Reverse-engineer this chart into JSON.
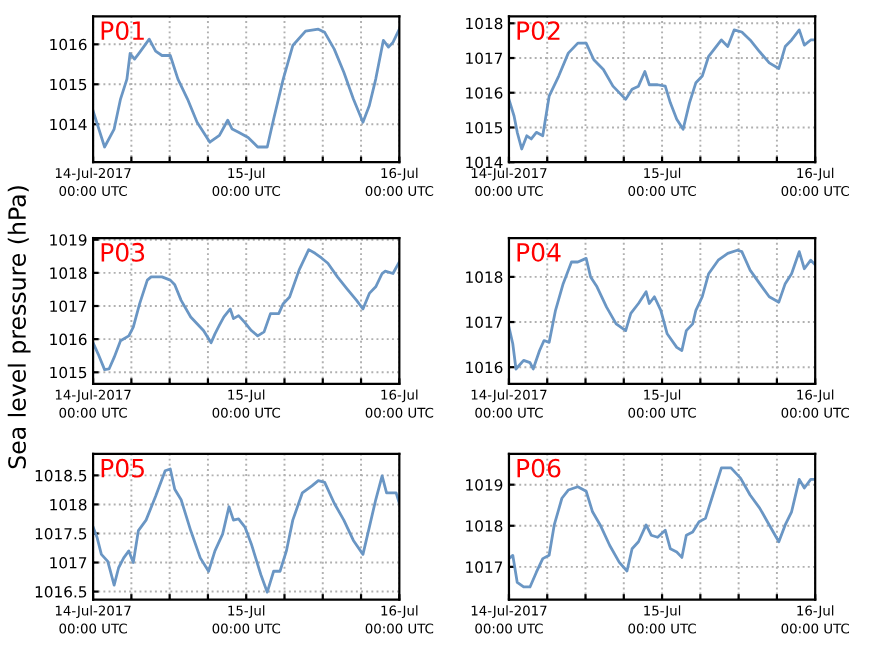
{
  "chart_data": [
    {
      "type": "line",
      "title": "P01",
      "xlim": [
        "2017-07-14T00:00",
        "2017-07-16T00:00"
      ],
      "ylim": [
        1013.05,
        1016.7
      ],
      "yticks": [
        1014,
        1015,
        1016
      ],
      "grid": true,
      "xticks": [
        {
          "value": "2017-07-14T00:00",
          "label": "14-Jul-2017\n00:00 UTC"
        },
        {
          "value": "2017-07-14T06:00",
          "label": null
        },
        {
          "value": "2017-07-14T12:00",
          "label": null
        },
        {
          "value": "2017-07-14T18:00",
          "label": null
        },
        {
          "value": "2017-07-15T00:00",
          "label": "15-Jul\n00:00 UTC"
        },
        {
          "value": "2017-07-15T06:00",
          "label": null
        },
        {
          "value": "2017-07-15T12:00",
          "label": null
        },
        {
          "value": "2017-07-15T18:00",
          "label": null
        },
        {
          "value": "2017-07-16T00:00",
          "label": "16-Jul\n00:00 UTC"
        }
      ],
      "series": [
        {
          "color": "#6a96c4",
          "x": [
            "2017-07-14T00:00",
            "2017-07-14T01:48",
            "2017-07-14T03:18",
            "2017-07-14T04:18",
            "2017-07-14T05:18",
            "2017-07-14T05:48",
            "2017-07-14T06:30",
            "2017-07-14T07:18",
            "2017-07-14T08:48",
            "2017-07-14T09:48",
            "2017-07-14T10:48",
            "2017-07-14T12:06",
            "2017-07-14T13:18",
            "2017-07-14T14:48",
            "2017-07-14T16:18",
            "2017-07-14T18:18",
            "2017-07-14T19:48",
            "2017-07-14T21:06",
            "2017-07-14T21:48",
            "2017-07-14T22:48",
            "2017-07-15T00:18",
            "2017-07-15T01:48",
            "2017-07-15T03:18",
            "2017-07-15T04:18",
            "2017-07-15T05:48",
            "2017-07-15T07:18",
            "2017-07-15T09:18",
            "2017-07-15T11:18",
            "2017-07-15T12:18",
            "2017-07-15T13:48",
            "2017-07-15T15:18",
            "2017-07-15T16:48",
            "2017-07-15T18:18",
            "2017-07-15T19:18",
            "2017-07-15T20:18",
            "2017-07-15T21:30",
            "2017-07-15T22:18",
            "2017-07-15T23:00",
            "2017-07-16T00:00"
          ],
          "values": [
            1014.33,
            1013.43,
            1013.88,
            1014.63,
            1015.13,
            1015.77,
            1015.63,
            1015.8,
            1016.13,
            1015.83,
            1015.72,
            1015.72,
            1015.13,
            1014.63,
            1014.05,
            1013.55,
            1013.72,
            1014.1,
            1013.88,
            1013.8,
            1013.67,
            1013.43,
            1013.43,
            1014.13,
            1015.13,
            1015.97,
            1016.33,
            1016.38,
            1016.3,
            1015.88,
            1015.3,
            1014.63,
            1014.05,
            1014.47,
            1015.13,
            1016.1,
            1015.93,
            1016.05,
            1016.38
          ]
        }
      ]
    },
    {
      "type": "line",
      "title": "P02",
      "xlim": [
        "2017-07-14T00:00",
        "2017-07-16T00:00"
      ],
      "ylim": [
        1014,
        1018.2
      ],
      "yticks": [
        1014,
        1015,
        1016,
        1017,
        1018
      ],
      "grid": true,
      "xticks": [
        {
          "value": "2017-07-14T00:00",
          "label": "14-Jul-2017\n00:00 UTC"
        },
        {
          "value": "2017-07-14T06:00",
          "label": null
        },
        {
          "value": "2017-07-14T12:00",
          "label": null
        },
        {
          "value": "2017-07-14T18:00",
          "label": null
        },
        {
          "value": "2017-07-15T00:00",
          "label": "15-Jul\n00:00 UTC"
        },
        {
          "value": "2017-07-15T06:00",
          "label": null
        },
        {
          "value": "2017-07-15T12:00",
          "label": null
        },
        {
          "value": "2017-07-15T18:00",
          "label": null
        },
        {
          "value": "2017-07-16T00:00",
          "label": "16-Jul\n00:00 UTC"
        }
      ],
      "series": [
        {
          "color": "#6a96c4",
          "x": [
            "2017-07-14T00:00",
            "2017-07-14T00:48",
            "2017-07-14T01:18",
            "2017-07-14T02:00",
            "2017-07-14T02:48",
            "2017-07-14T03:30",
            "2017-07-14T04:18",
            "2017-07-14T05:18",
            "2017-07-14T06:18",
            "2017-07-14T07:48",
            "2017-07-14T09:18",
            "2017-07-14T10:48",
            "2017-07-14T12:06",
            "2017-07-14T13:18",
            "2017-07-14T14:48",
            "2017-07-14T16:18",
            "2017-07-14T18:18",
            "2017-07-14T19:18",
            "2017-07-14T20:18",
            "2017-07-14T21:18",
            "2017-07-14T22:00",
            "2017-07-14T23:18",
            "2017-07-15T00:30",
            "2017-07-15T01:18",
            "2017-07-15T02:18",
            "2017-07-15T03:18",
            "2017-07-15T04:18",
            "2017-07-15T05:18",
            "2017-07-15T06:18",
            "2017-07-15T07:18",
            "2017-07-15T09:18",
            "2017-07-15T10:18",
            "2017-07-15T11:18",
            "2017-07-15T12:30",
            "2017-07-15T13:48",
            "2017-07-15T15:18",
            "2017-07-15T16:48",
            "2017-07-15T18:18",
            "2017-07-15T19:18",
            "2017-07-15T20:18",
            "2017-07-15T21:30",
            "2017-07-15T22:18",
            "2017-07-15T23:18",
            "2017-07-16T00:00"
          ],
          "values": [
            1015.81,
            1015.33,
            1014.86,
            1014.38,
            1014.76,
            1014.67,
            1014.86,
            1014.76,
            1015.9,
            1016.48,
            1017.14,
            1017.43,
            1017.43,
            1016.95,
            1016.67,
            1016.19,
            1015.81,
            1016.1,
            1016.19,
            1016.61,
            1016.23,
            1016.23,
            1016.19,
            1015.71,
            1015.24,
            1014.95,
            1015.71,
            1016.29,
            1016.48,
            1017.05,
            1017.52,
            1017.33,
            1017.81,
            1017.75,
            1017.52,
            1017.18,
            1016.86,
            1016.7,
            1017.33,
            1017.52,
            1017.81,
            1017.37,
            1017.52,
            1017.52
          ]
        }
      ]
    },
    {
      "type": "line",
      "title": "P03",
      "ylabel": "Sea level pressure (hPa)",
      "xlim": [
        "2017-07-14T00:00",
        "2017-07-16T00:00"
      ],
      "ylim": [
        1014.65,
        1019.05
      ],
      "yticks": [
        1015,
        1016,
        1017,
        1018,
        1019
      ],
      "grid": true,
      "xticks": [
        {
          "value": "2017-07-14T00:00",
          "label": "14-Jul-2017\n00:00 UTC"
        },
        {
          "value": "2017-07-14T06:00",
          "label": null
        },
        {
          "value": "2017-07-14T12:00",
          "label": null
        },
        {
          "value": "2017-07-14T18:00",
          "label": null
        },
        {
          "value": "2017-07-15T00:00",
          "label": "15-Jul\n00:00 UTC"
        },
        {
          "value": "2017-07-15T06:00",
          "label": null
        },
        {
          "value": "2017-07-15T12:00",
          "label": null
        },
        {
          "value": "2017-07-15T18:00",
          "label": null
        },
        {
          "value": "2017-07-16T00:00",
          "label": "16-Jul\n00:00 UTC"
        }
      ],
      "series": [
        {
          "color": "#6a96c4",
          "x": [
            "2017-07-14T00:00",
            "2017-07-14T00:48",
            "2017-07-14T01:48",
            "2017-07-14T02:30",
            "2017-07-14T03:18",
            "2017-07-14T04:18",
            "2017-07-14T05:36",
            "2017-07-14T06:18",
            "2017-07-14T07:18",
            "2017-07-14T08:30",
            "2017-07-14T09:06",
            "2017-07-14T10:48",
            "2017-07-14T12:06",
            "2017-07-14T12:48",
            "2017-07-14T13:48",
            "2017-07-14T15:18",
            "2017-07-14T17:18",
            "2017-07-14T18:30",
            "2017-07-14T19:06",
            "2017-07-14T19:48",
            "2017-07-14T20:30",
            "2017-07-14T21:30",
            "2017-07-14T22:00",
            "2017-07-14T22:48",
            "2017-07-14T23:48",
            "2017-07-15T00:48",
            "2017-07-15T01:48",
            "2017-07-15T02:48",
            "2017-07-15T03:48",
            "2017-07-15T05:06",
            "2017-07-15T05:48",
            "2017-07-15T06:48",
            "2017-07-15T08:18",
            "2017-07-15T09:48",
            "2017-07-15T10:48",
            "2017-07-15T11:48",
            "2017-07-15T12:48",
            "2017-07-15T14:18",
            "2017-07-15T15:48",
            "2017-07-15T17:18",
            "2017-07-15T18:18",
            "2017-07-15T19:18",
            "2017-07-15T20:18",
            "2017-07-15T21:18",
            "2017-07-15T21:48",
            "2017-07-15T23:00",
            "2017-07-16T00:00"
          ],
          "values": [
            1015.89,
            1015.55,
            1015.08,
            1015.1,
            1015.45,
            1015.95,
            1016.1,
            1016.36,
            1017.07,
            1017.78,
            1017.88,
            1017.88,
            1017.78,
            1017.64,
            1017.17,
            1016.67,
            1016.26,
            1015.89,
            1016.16,
            1016.42,
            1016.67,
            1016.91,
            1016.62,
            1016.71,
            1016.5,
            1016.26,
            1016.1,
            1016.22,
            1016.77,
            1016.77,
            1017.07,
            1017.27,
            1018.09,
            1018.7,
            1018.59,
            1018.45,
            1018.29,
            1017.88,
            1017.52,
            1017.17,
            1016.91,
            1017.38,
            1017.58,
            1017.98,
            1018.05,
            1017.98,
            1018.33
          ]
        }
      ]
    },
    {
      "type": "line",
      "title": "P04",
      "xlim": [
        "2017-07-14T00:00",
        "2017-07-16T00:00"
      ],
      "ylim": [
        1015.63,
        1018.86
      ],
      "yticks": [
        1016,
        1017,
        1018
      ],
      "grid": true,
      "xticks": [
        {
          "value": "2017-07-14T00:00",
          "label": "14-Jul-2017\n00:00 UTC"
        },
        {
          "value": "2017-07-14T06:00",
          "label": null
        },
        {
          "value": "2017-07-14T12:00",
          "label": null
        },
        {
          "value": "2017-07-14T18:00",
          "label": null
        },
        {
          "value": "2017-07-15T00:00",
          "label": "15-Jul\n00:00 UTC"
        },
        {
          "value": "2017-07-15T06:00",
          "label": null
        },
        {
          "value": "2017-07-15T12:00",
          "label": null
        },
        {
          "value": "2017-07-15T18:00",
          "label": null
        },
        {
          "value": "2017-07-16T00:00",
          "label": "16-Jul\n00:00 UTC"
        }
      ],
      "series": [
        {
          "color": "#6a96c4",
          "x": [
            "2017-07-14T00:00",
            "2017-07-14T00:36",
            "2017-07-14T01:06",
            "2017-07-14T01:48",
            "2017-07-14T02:18",
            "2017-07-14T03:18",
            "2017-07-14T03:48",
            "2017-07-14T04:48",
            "2017-07-14T05:30",
            "2017-07-14T06:18",
            "2017-07-14T07:18",
            "2017-07-14T08:30",
            "2017-07-14T09:48",
            "2017-07-14T10:48",
            "2017-07-14T12:06",
            "2017-07-14T12:48",
            "2017-07-14T13:48",
            "2017-07-14T15:18",
            "2017-07-14T16:48",
            "2017-07-14T18:18",
            "2017-07-14T19:06",
            "2017-07-14T20:18",
            "2017-07-14T21:30",
            "2017-07-14T22:00",
            "2017-07-14T22:48",
            "2017-07-14T23:48",
            "2017-07-15T00:48",
            "2017-07-15T02:18",
            "2017-07-15T03:06",
            "2017-07-15T03:48",
            "2017-07-15T04:48",
            "2017-07-15T05:18",
            "2017-07-15T06:18",
            "2017-07-15T07:18",
            "2017-07-15T08:48",
            "2017-07-15T10:18",
            "2017-07-15T11:48",
            "2017-07-15T12:30",
            "2017-07-15T13:48",
            "2017-07-15T15:18",
            "2017-07-15T16:48",
            "2017-07-15T18:18",
            "2017-07-15T19:18",
            "2017-07-15T20:18",
            "2017-07-15T21:30",
            "2017-07-15T22:18",
            "2017-07-15T23:18",
            "2017-07-16T00:00"
          ],
          "values": [
            1016.89,
            1016.52,
            1015.96,
            1016.07,
            1016.15,
            1016.1,
            1015.96,
            1016.37,
            1016.59,
            1016.55,
            1017.26,
            1017.85,
            1018.33,
            1018.33,
            1018.41,
            1018.0,
            1017.78,
            1017.33,
            1016.96,
            1016.81,
            1017.19,
            1017.41,
            1017.67,
            1017.41,
            1017.56,
            1017.26,
            1016.74,
            1016.44,
            1016.37,
            1016.81,
            1016.96,
            1017.26,
            1017.56,
            1018.07,
            1018.37,
            1018.52,
            1018.59,
            1018.56,
            1018.15,
            1017.85,
            1017.56,
            1017.44,
            1017.85,
            1018.07,
            1018.56,
            1018.18,
            1018.37,
            1018.27
          ]
        }
      ]
    },
    {
      "type": "line",
      "title": "P05",
      "xlim": [
        "2017-07-14T00:00",
        "2017-07-16T00:00"
      ],
      "ylim": [
        1016.36,
        1018.87
      ],
      "yticks": [
        1016.5,
        1017,
        1017.5,
        1018,
        1018.5
      ],
      "grid": true,
      "xticks": [
        {
          "value": "2017-07-14T00:00",
          "label": "14-Jul-2017\n00:00 UTC"
        },
        {
          "value": "2017-07-14T06:00",
          "label": null
        },
        {
          "value": "2017-07-14T12:00",
          "label": null
        },
        {
          "value": "2017-07-14T18:00",
          "label": null
        },
        {
          "value": "2017-07-15T00:00",
          "label": "15-Jul\n00:00 UTC"
        },
        {
          "value": "2017-07-15T06:00",
          "label": null
        },
        {
          "value": "2017-07-15T12:00",
          "label": null
        },
        {
          "value": "2017-07-15T18:00",
          "label": null
        },
        {
          "value": "2017-07-16T00:00",
          "label": "16-Jul\n00:00 UTC"
        }
      ],
      "series": [
        {
          "color": "#6a96c4",
          "x": [
            "2017-07-14T00:00",
            "2017-07-14T00:36",
            "2017-07-14T01:18",
            "2017-07-14T02:18",
            "2017-07-14T03:18",
            "2017-07-14T04:00",
            "2017-07-14T04:48",
            "2017-07-14T05:36",
            "2017-07-14T06:18",
            "2017-07-14T07:06",
            "2017-07-14T08:18",
            "2017-07-14T09:48",
            "2017-07-14T11:18",
            "2017-07-14T12:06",
            "2017-07-14T12:48",
            "2017-07-14T13:48",
            "2017-07-14T15:18",
            "2017-07-14T16:48",
            "2017-07-14T18:06",
            "2017-07-14T19:06",
            "2017-07-14T20:18",
            "2017-07-14T21:18",
            "2017-07-14T22:00",
            "2017-07-14T22:48",
            "2017-07-14T23:48",
            "2017-07-15T00:48",
            "2017-07-15T02:18",
            "2017-07-15T03:18",
            "2017-07-15T04:18",
            "2017-07-15T05:18",
            "2017-07-15T06:18",
            "2017-07-15T07:18",
            "2017-07-15T08:48",
            "2017-07-15T10:18",
            "2017-07-15T11:18",
            "2017-07-15T12:18",
            "2017-07-15T13:48",
            "2017-07-15T15:18",
            "2017-07-15T16:48",
            "2017-07-15T18:18",
            "2017-07-15T19:18",
            "2017-07-15T20:18",
            "2017-07-15T21:18",
            "2017-07-15T22:00",
            "2017-07-15T22:48",
            "2017-07-15T23:30",
            "2017-07-16T00:00"
          ],
          "values": [
            1017.61,
            1017.44,
            1017.14,
            1017.02,
            1016.61,
            1016.91,
            1017.08,
            1017.2,
            1017.0,
            1017.55,
            1017.73,
            1018.14,
            1018.58,
            1018.61,
            1018.26,
            1018.08,
            1017.55,
            1017.08,
            1016.85,
            1017.2,
            1017.49,
            1017.96,
            1017.73,
            1017.75,
            1017.61,
            1017.32,
            1016.79,
            1016.49,
            1016.85,
            1016.85,
            1017.2,
            1017.73,
            1018.2,
            1018.32,
            1018.41,
            1018.38,
            1018.02,
            1017.73,
            1017.38,
            1017.14,
            1017.61,
            1018.08,
            1018.49,
            1018.2,
            1018.2,
            1018.2,
            1018.02
          ]
        }
      ]
    },
    {
      "type": "line",
      "title": "P06",
      "xlim": [
        "2017-07-14T00:00",
        "2017-07-16T00:00"
      ],
      "ylim": [
        1016.2,
        1019.75
      ],
      "yticks": [
        1017,
        1018,
        1019
      ],
      "grid": true,
      "xticks": [
        {
          "value": "2017-07-14T00:00",
          "label": "14-Jul-2017\n00:00 UTC"
        },
        {
          "value": "2017-07-14T06:00",
          "label": null
        },
        {
          "value": "2017-07-14T12:00",
          "label": null
        },
        {
          "value": "2017-07-14T18:00",
          "label": null
        },
        {
          "value": "2017-07-15T00:00",
          "label": "15-Jul\n00:00 UTC"
        },
        {
          "value": "2017-07-15T06:00",
          "label": null
        },
        {
          "value": "2017-07-15T12:00",
          "label": null
        },
        {
          "value": "2017-07-15T18:00",
          "label": null
        },
        {
          "value": "2017-07-16T00:00",
          "label": "16-Jul\n00:00 UTC"
        }
      ],
      "series": [
        {
          "color": "#6a96c4",
          "x": [
            "2017-07-14T00:00",
            "2017-07-14T00:36",
            "2017-07-14T01:18",
            "2017-07-14T02:18",
            "2017-07-14T03:18",
            "2017-07-14T04:18",
            "2017-07-14T05:18",
            "2017-07-14T06:18",
            "2017-07-14T07:06",
            "2017-07-14T08:18",
            "2017-07-14T09:18",
            "2017-07-14T10:48",
            "2017-07-14T12:06",
            "2017-07-14T13:06",
            "2017-07-14T14:18",
            "2017-07-14T15:48",
            "2017-07-14T17:18",
            "2017-07-14T18:30",
            "2017-07-14T19:18",
            "2017-07-14T20:18",
            "2017-07-14T21:30",
            "2017-07-14T22:18",
            "2017-07-14T23:18",
            "2017-07-15T00:30",
            "2017-07-15T01:18",
            "2017-07-15T02:18",
            "2017-07-15T03:06",
            "2017-07-15T03:48",
            "2017-07-15T04:48",
            "2017-07-15T05:48",
            "2017-07-15T06:48",
            "2017-07-15T07:48",
            "2017-07-15T09:18",
            "2017-07-15T10:48",
            "2017-07-15T12:18",
            "2017-07-15T13:48",
            "2017-07-15T15:18",
            "2017-07-15T16:48",
            "2017-07-15T18:18",
            "2017-07-15T19:18",
            "2017-07-15T20:18",
            "2017-07-15T21:30",
            "2017-07-15T22:18",
            "2017-07-15T23:18",
            "2017-07-16T00:00"
          ],
          "values": [
            1017.2,
            1017.28,
            1016.62,
            1016.51,
            1016.51,
            1016.87,
            1017.2,
            1017.28,
            1018.02,
            1018.67,
            1018.87,
            1018.95,
            1018.84,
            1018.34,
            1018.02,
            1017.52,
            1017.11,
            1016.9,
            1017.44,
            1017.61,
            1018.02,
            1017.77,
            1017.72,
            1017.89,
            1017.44,
            1017.36,
            1017.23,
            1017.77,
            1017.85,
            1018.1,
            1018.18,
            1018.67,
            1019.41,
            1019.41,
            1019.16,
            1018.75,
            1018.43,
            1018.02,
            1017.61,
            1018.02,
            1018.34,
            1019.13,
            1018.92,
            1019.13,
            1019.13
          ]
        }
      ]
    }
  ]
}
